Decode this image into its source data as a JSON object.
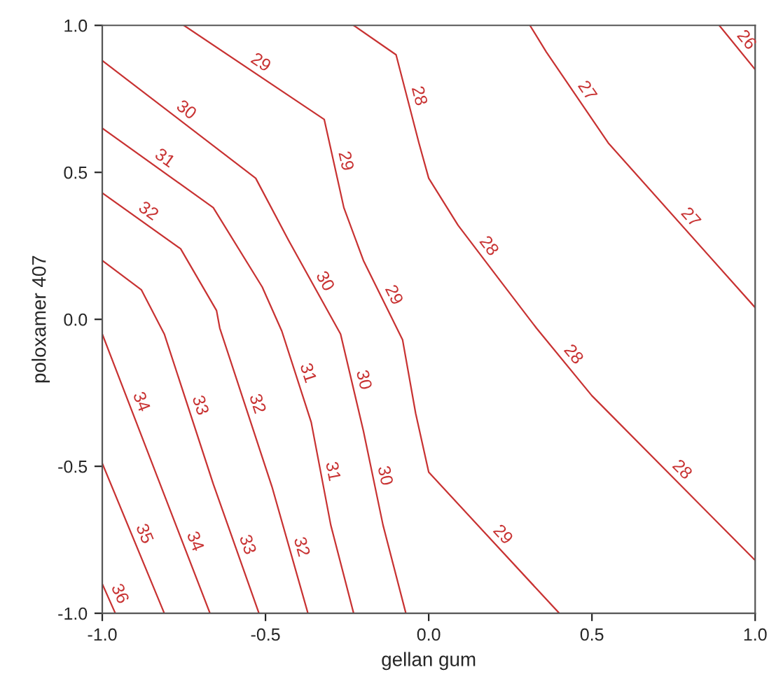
{
  "chart_data": {
    "type": "line",
    "xlabel": "gellan gum",
    "ylabel": "poloxamer 407",
    "xlim": [
      -1.0,
      1.0
    ],
    "ylim": [
      -1.0,
      1.0
    ],
    "xticks": [
      {
        "value": -1.0,
        "label": "-1.0"
      },
      {
        "value": -0.5,
        "label": "-0.5"
      },
      {
        "value": 0.0,
        "label": "0.0"
      },
      {
        "value": 0.5,
        "label": "0.5"
      },
      {
        "value": 1.0,
        "label": "1.0"
      }
    ],
    "yticks": [
      {
        "value": -1.0,
        "label": "-1.0"
      },
      {
        "value": -0.5,
        "label": "-0.5"
      },
      {
        "value": 0.0,
        "label": "0.0"
      },
      {
        "value": 0.5,
        "label": "0.5"
      },
      {
        "value": 1.0,
        "label": "1.0"
      }
    ],
    "grid": false,
    "legend": false,
    "line_style": "solid",
    "series": [
      {
        "name": "26",
        "color": "#c83232",
        "x": [
          0.89,
          1.0
        ],
        "values": [
          1.0,
          0.85
        ]
      },
      {
        "name": "27",
        "color": "#c83232",
        "x": [
          0.31,
          0.36,
          0.55,
          1.0
        ],
        "values": [
          1.0,
          0.91,
          0.6,
          0.04
        ]
      },
      {
        "name": "28",
        "color": "#c83232",
        "x": [
          -0.23,
          -0.1,
          -0.03,
          0.0,
          0.09,
          0.22,
          0.33,
          0.5,
          1.0
        ],
        "values": [
          1.0,
          0.9,
          0.6,
          0.48,
          0.32,
          0.13,
          -0.03,
          -0.26,
          -0.82
        ]
      },
      {
        "name": "29",
        "color": "#c83232",
        "x": [
          -0.75,
          -0.32,
          -0.26,
          -0.2,
          -0.08,
          -0.04,
          0.0,
          0.4
        ],
        "values": [
          1.0,
          0.68,
          0.38,
          0.2,
          -0.07,
          -0.32,
          -0.52,
          -1.0
        ]
      },
      {
        "name": "30",
        "color": "#c83232",
        "x": [
          -1.0,
          -0.53,
          -0.43,
          -0.27,
          -0.2,
          -0.14,
          -0.07
        ],
        "values": [
          0.88,
          0.48,
          0.27,
          -0.05,
          -0.38,
          -0.7,
          -1.0
        ]
      },
      {
        "name": "31",
        "color": "#c83232",
        "x": [
          -1.0,
          -0.66,
          -0.51,
          -0.45,
          -0.36,
          -0.3,
          -0.23
        ],
        "values": [
          0.65,
          0.38,
          0.11,
          -0.04,
          -0.35,
          -0.7,
          -1.0
        ]
      },
      {
        "name": "32",
        "color": "#c83232",
        "x": [
          -1.0,
          -0.76,
          -0.65,
          -0.64,
          -0.48,
          -0.37
        ],
        "values": [
          0.43,
          0.24,
          0.03,
          -0.03,
          -0.57,
          -1.0
        ]
      },
      {
        "name": "33",
        "color": "#c83232",
        "x": [
          -1.0,
          -0.88,
          -0.81,
          -0.66,
          -0.52
        ],
        "values": [
          0.2,
          0.1,
          -0.05,
          -0.56,
          -1.0
        ]
      },
      {
        "name": "34",
        "color": "#c83232",
        "x": [
          -1.0,
          -0.83,
          -0.67
        ],
        "values": [
          -0.05,
          -0.54,
          -1.0
        ]
      },
      {
        "name": "35",
        "color": "#c83232",
        "x": [
          -1.0,
          -0.81
        ],
        "values": [
          -0.49,
          -1.0
        ]
      },
      {
        "name": "36",
        "color": "#c83232",
        "x": [
          -1.0,
          -0.96
        ],
        "values": [
          -0.9,
          -1.0
        ]
      }
    ]
  }
}
